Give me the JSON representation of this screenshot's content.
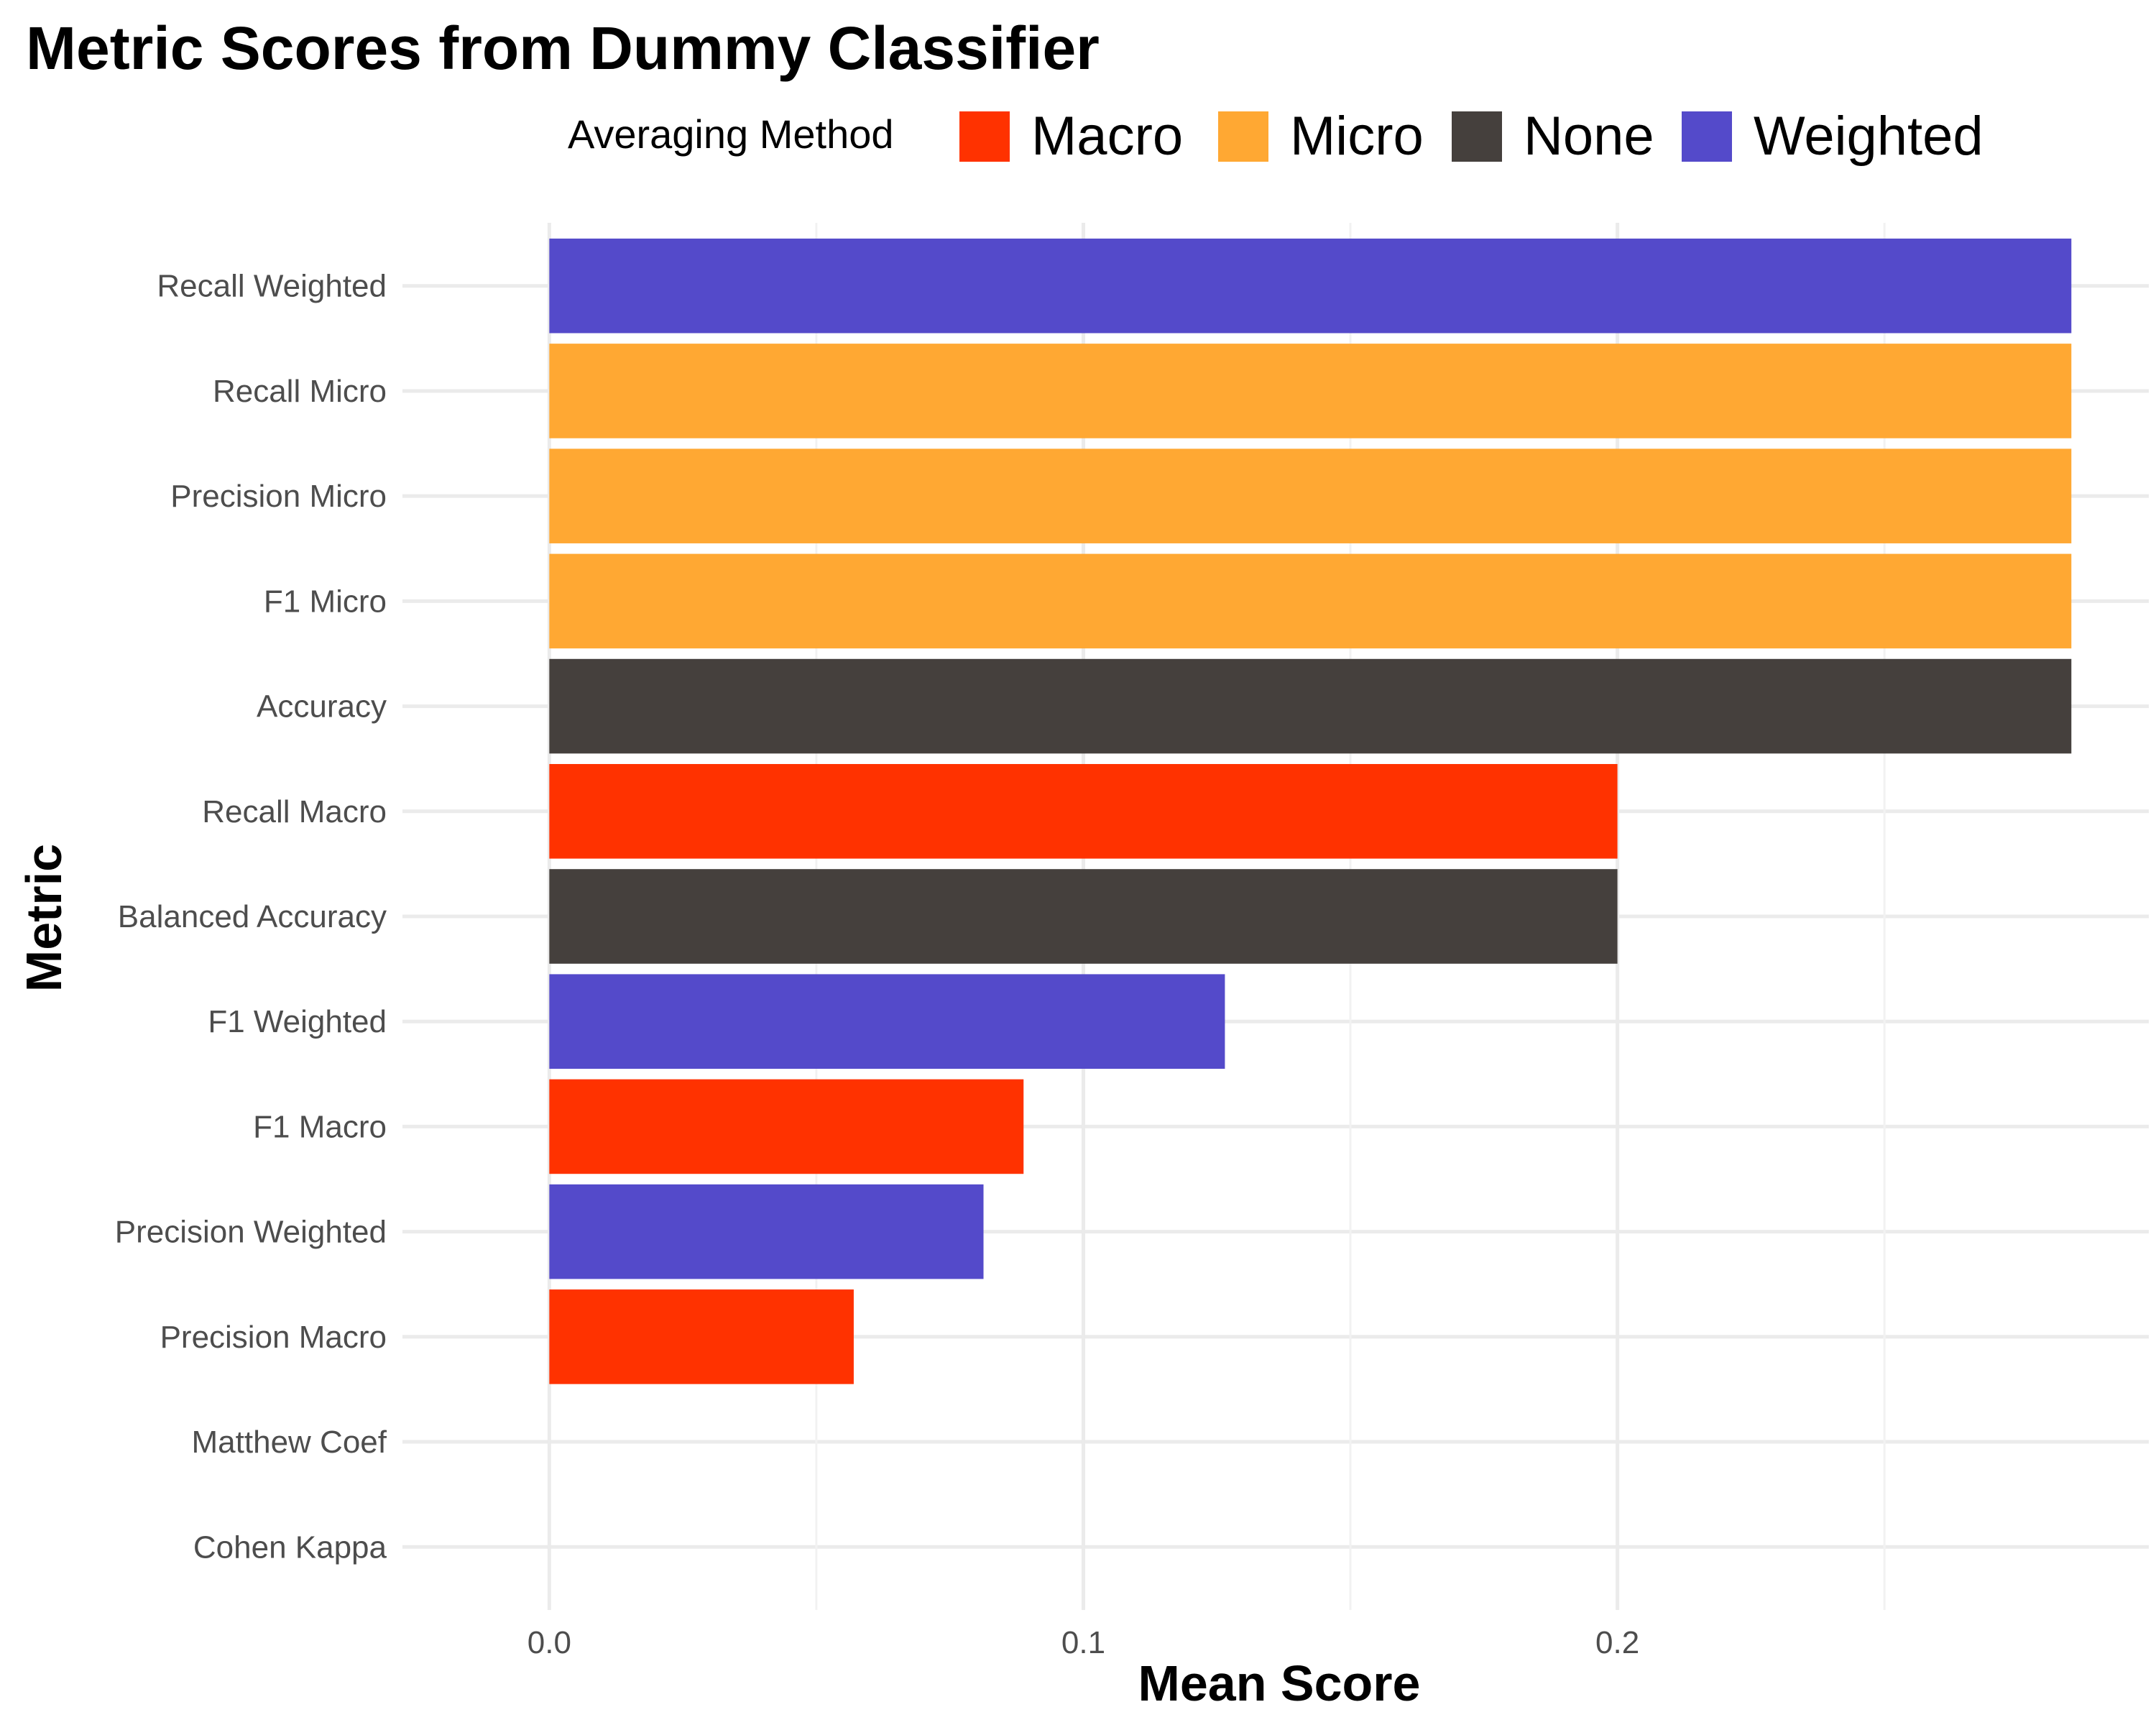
{
  "colors": {
    "Macro": "#FF3200",
    "Micro": "#FFA833",
    "None": "#45403D",
    "Weighted": "#544ACA"
  },
  "legend": {
    "title": "Averaging Method",
    "placement": "top",
    "entries": [
      "Macro",
      "Micro",
      "None",
      "Weighted"
    ]
  },
  "chart_data": {
    "type": "bar",
    "orientation": "horizontal",
    "title": "Metric Scores from Dummy Classifier",
    "xlabel": "Mean Score",
    "ylabel": "Metric",
    "xlim": [
      -0.0275,
      0.2995
    ],
    "xticks": [
      0.0,
      0.1,
      0.2
    ],
    "xtick_labels": [
      "0.0",
      "0.1",
      "0.2"
    ],
    "grid": true,
    "categories": [
      "Recall Weighted",
      "Recall Micro",
      "Precision Micro",
      "F1 Micro",
      "Accuracy",
      "Recall Macro",
      "Balanced Accuracy",
      "F1 Weighted",
      "F1 Macro",
      "Precision Weighted",
      "Precision Macro",
      "Matthew Coef",
      "Cohen Kappa"
    ],
    "values": [
      0.285,
      0.285,
      0.285,
      0.285,
      0.285,
      0.2,
      0.2,
      0.1265,
      0.0888,
      0.0813,
      0.057,
      0.0,
      0.0
    ],
    "groups": [
      "Weighted",
      "Micro",
      "Micro",
      "Micro",
      "None",
      "Macro",
      "None",
      "Weighted",
      "Macro",
      "Weighted",
      "Macro",
      "None",
      "None"
    ]
  }
}
